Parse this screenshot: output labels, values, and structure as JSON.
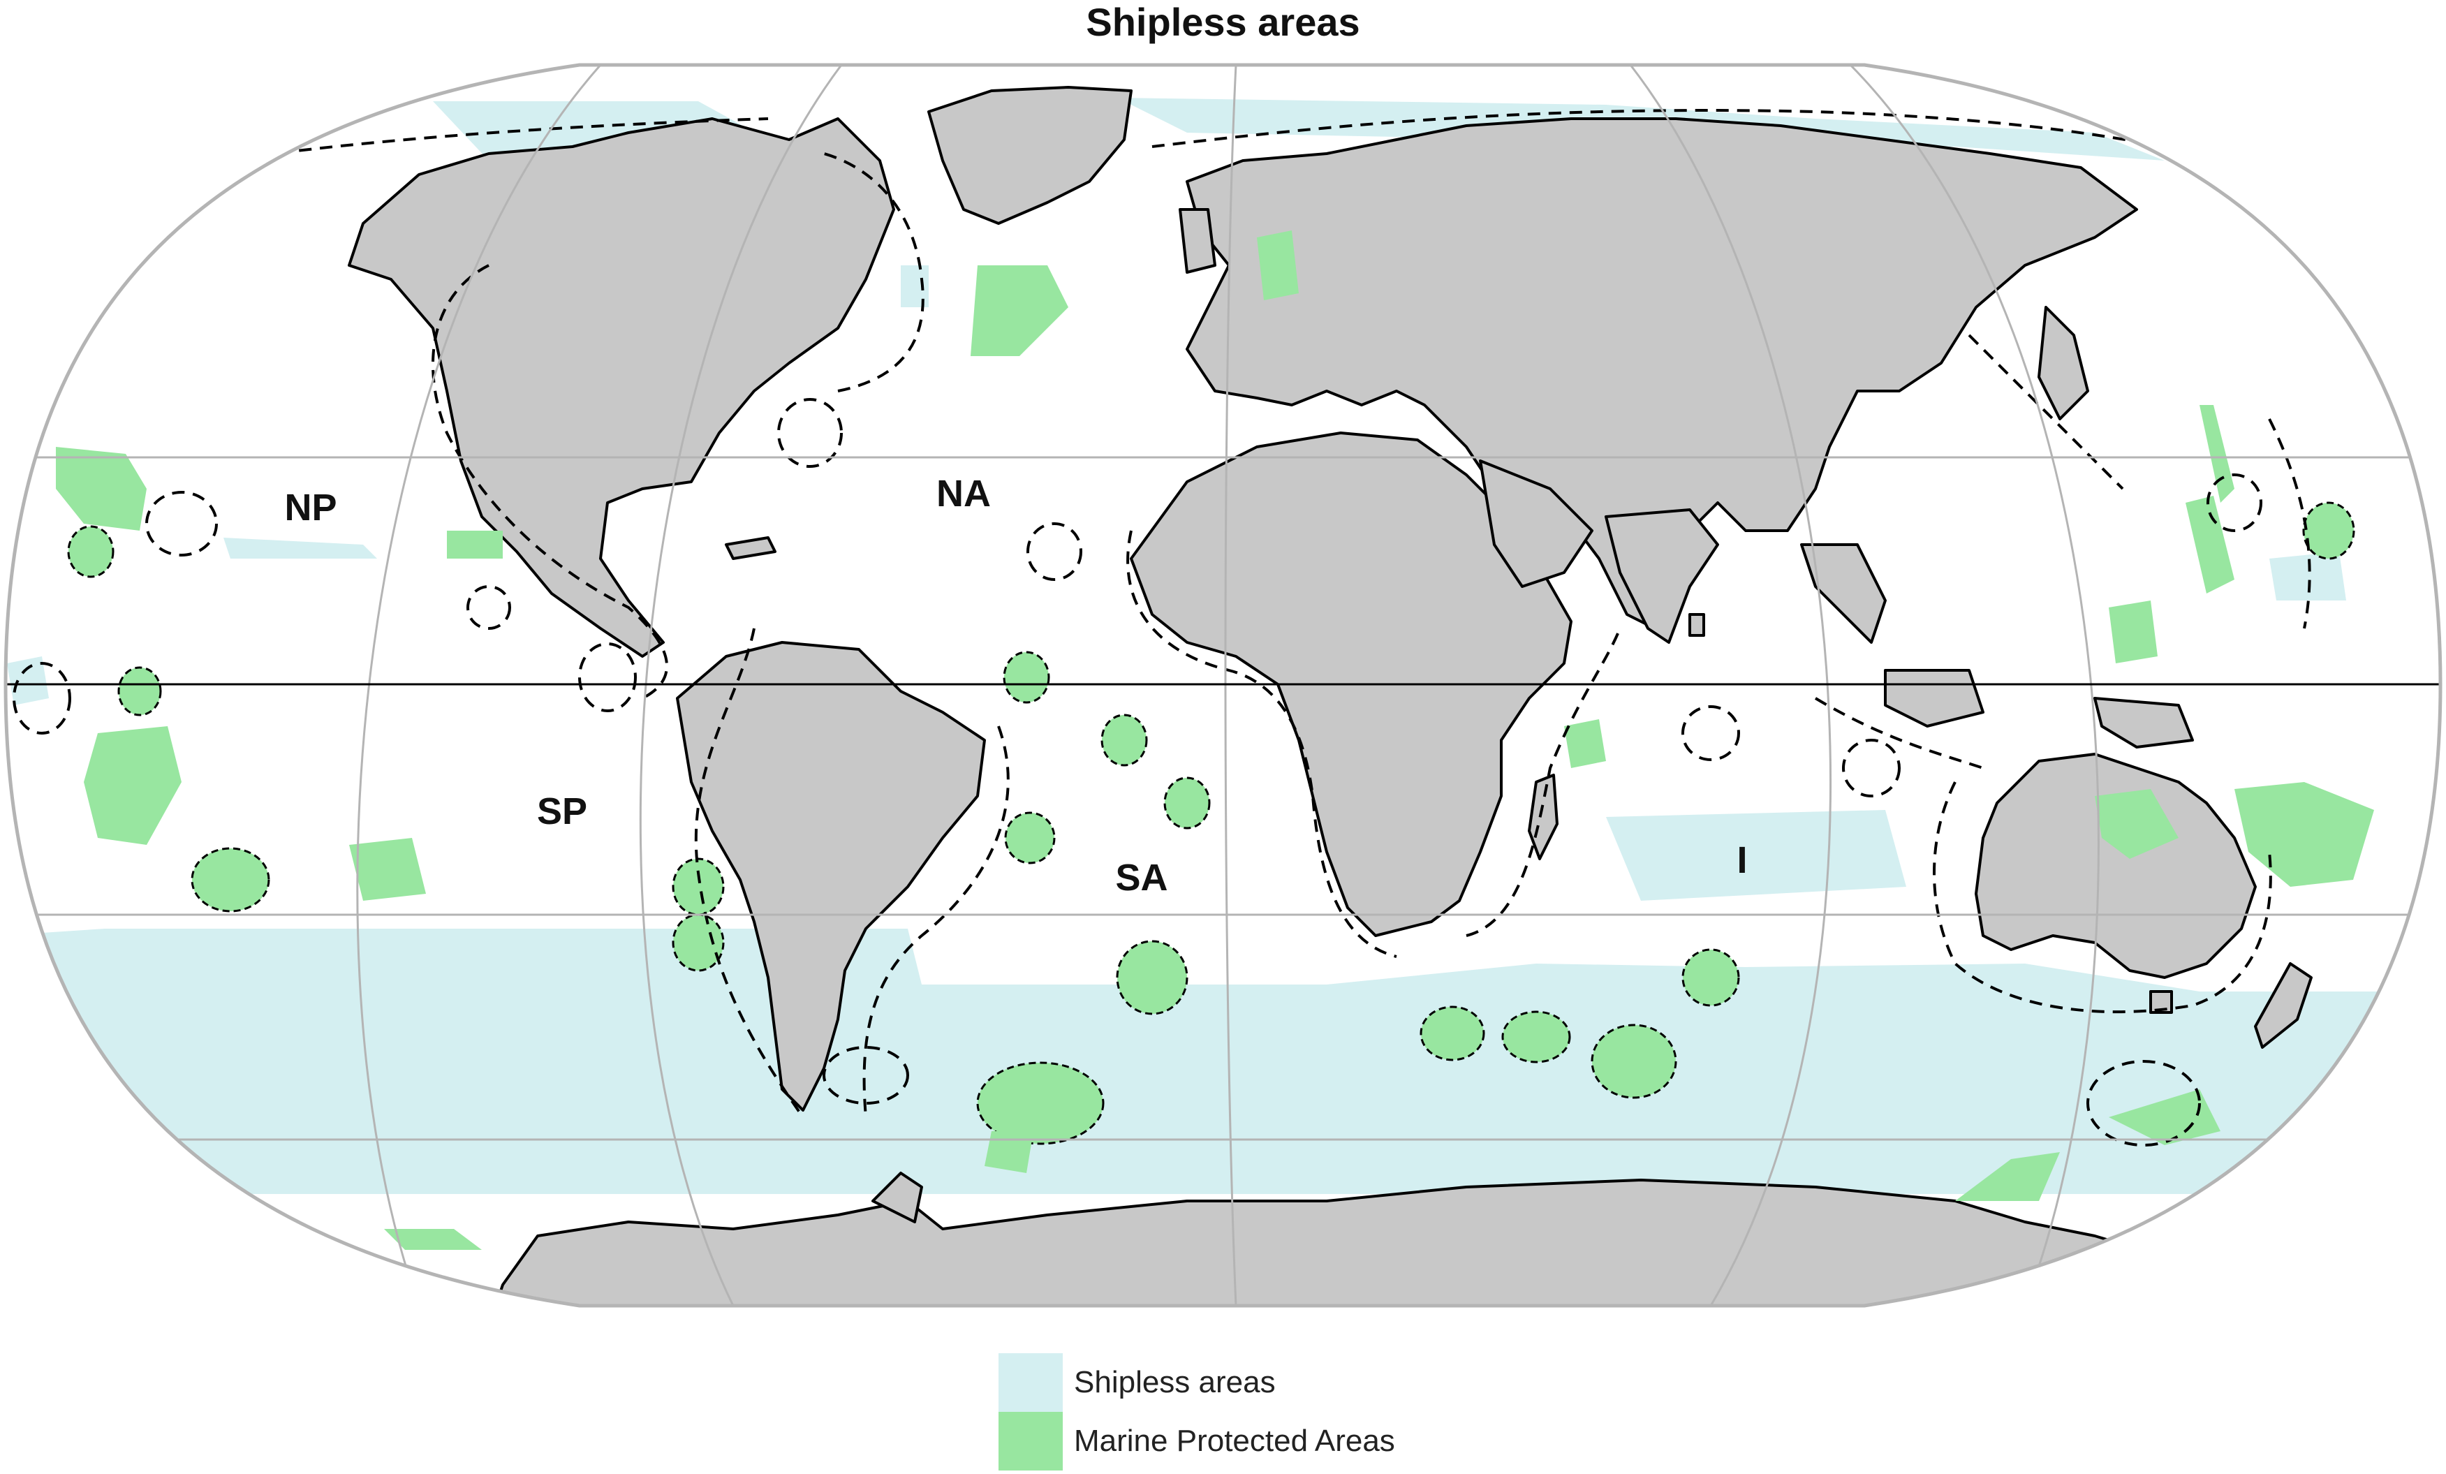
{
  "title": "Shipless areas",
  "colors": {
    "land": "#c8c8c8",
    "shipless": "#d4eff1",
    "mpa": "#98e6a0",
    "graticule": "#b4b4b4",
    "coast": "#000000"
  },
  "basins": [
    {
      "label": "NP"
    },
    {
      "label": "NA"
    },
    {
      "label": "SP"
    },
    {
      "label": "SA"
    },
    {
      "label": "I"
    }
  ],
  "legend": [
    {
      "label": "Shipless areas",
      "color": "#d4eff1"
    },
    {
      "label": "Marine Protected Areas",
      "color": "#98e6a0"
    }
  ]
}
